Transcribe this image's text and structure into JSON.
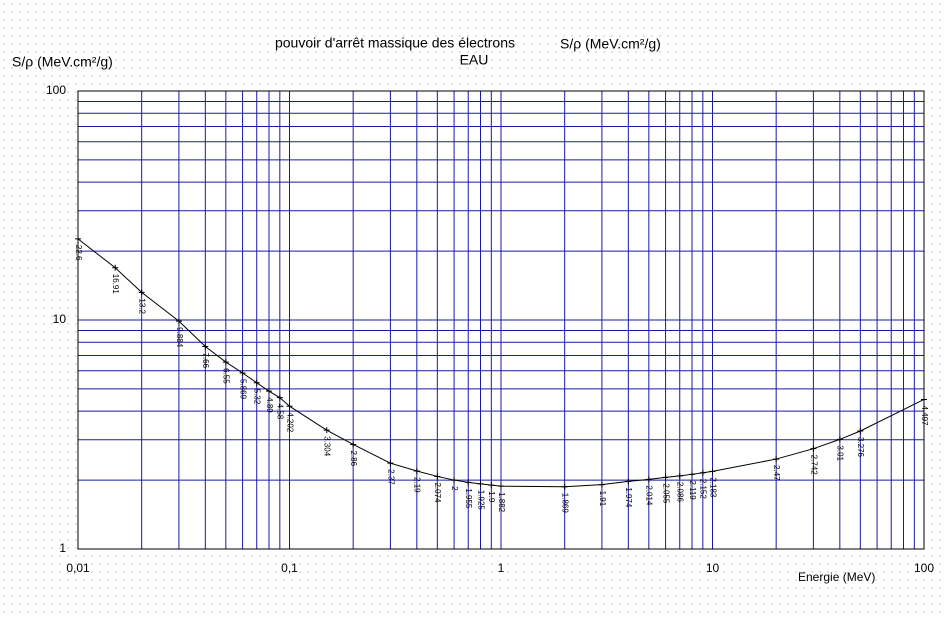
{
  "chart_data": {
    "type": "line",
    "title": "pouvoir d'arrêt massique des électrons",
    "subtitle": "EAU",
    "y_label": "S/ρ (MeV.cm²/g)",
    "y_label_right": "S/ρ (MeV.cm²/g)",
    "x_label": "Energie (MeV)",
    "x": [
      0.01,
      0.015,
      0.02,
      0.03,
      0.04,
      0.05,
      0.06,
      0.07,
      0.08,
      0.09,
      0.1,
      0.15,
      0.2,
      0.3,
      0.4,
      0.5,
      0.6,
      0.7,
      0.8,
      0.9,
      1,
      2,
      3,
      4,
      5,
      6,
      7,
      8,
      9,
      10,
      20,
      30,
      40,
      50,
      100
    ],
    "series": [
      {
        "name": "EAU",
        "color": "#000000",
        "values": [
          22.6,
          16.91,
          13.2,
          9.884,
          7.66,
          6.55,
          5.869,
          5.32,
          4.89,
          4.58,
          4.202,
          3.304,
          2.86,
          2.37,
          2.19,
          2.074,
          2,
          1.955,
          1.925,
          1.9,
          1.882,
          1.869,
          1.91,
          1.974,
          2.014,
          2.055,
          2.086,
          2.119,
          2.152,
          2.183,
          2.47,
          2.742,
          3.01,
          3.276,
          4.497
        ]
      }
    ],
    "log_x": true,
    "log_y": true,
    "xlim": [
      0.01,
      100
    ],
    "ylim": [
      1,
      100
    ],
    "xticks": [
      {
        "value": 0.01,
        "label": "0,01"
      },
      {
        "value": 0.1,
        "label": "0,1"
      },
      1,
      10,
      100
    ],
    "yticks": [
      1,
      10,
      100
    ],
    "grid": true,
    "grid_color": "#1a1aa8"
  }
}
